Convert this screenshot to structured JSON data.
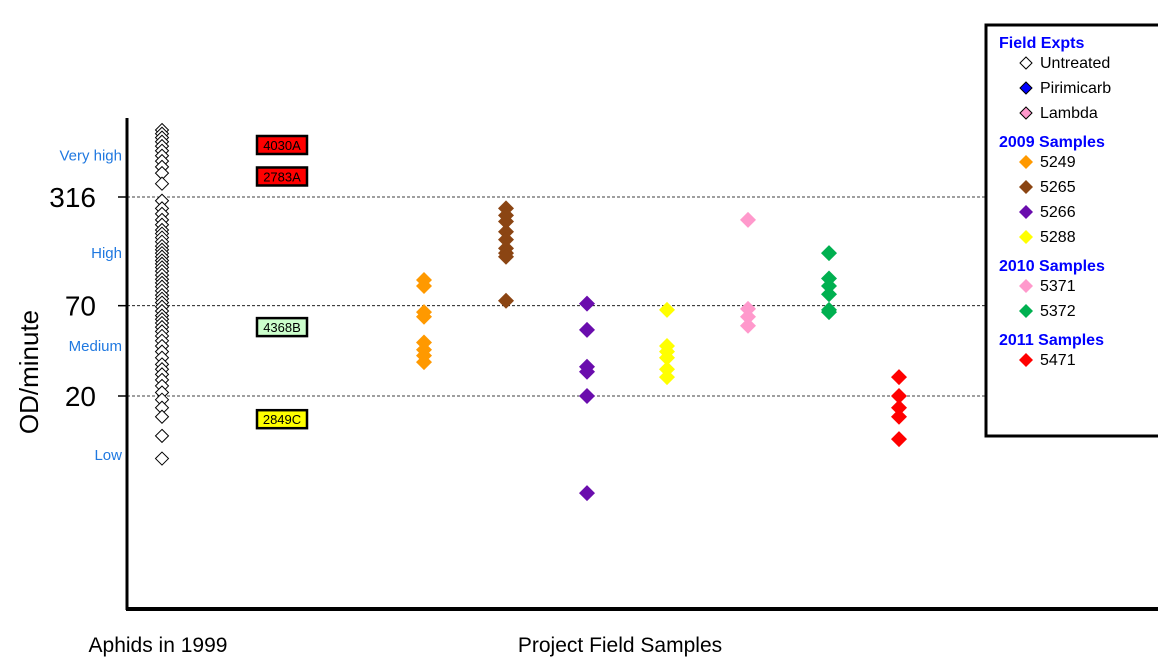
{
  "chart_data": {
    "type": "scatter",
    "title": "",
    "ylabel": "OD/minute",
    "y_scale": "log",
    "y_ticks": [
      {
        "value": 20,
        "label": "20"
      },
      {
        "value": 70,
        "label": "70"
      },
      {
        "value": 316,
        "label": "316"
      }
    ],
    "gridlines": [
      20,
      70,
      316
    ],
    "level_labels": [
      {
        "label": "Very high",
        "value": 560
      },
      {
        "label": "High",
        "value": 145
      },
      {
        "label": "Medium",
        "value": 40
      },
      {
        "label": "Low",
        "value": 8.8
      }
    ],
    "group_labels": {
      "left": "Aphids in 1999",
      "right": "Project Field Samples"
    },
    "reference_clones": [
      {
        "label": "4030A",
        "value": 650,
        "color": "#ff0000"
      },
      {
        "label": "2783A",
        "value": 420,
        "color": "#ff0000"
      },
      {
        "label": "4368B",
        "value": 52,
        "color": "#ccffcc"
      },
      {
        "label": "2849C",
        "value": 14.5,
        "color": "#ffff00"
      }
    ],
    "series": [
      {
        "name": "Untreated",
        "group": "Field Expts",
        "column": 0,
        "color": "#ffffff",
        "stroke": "#000000",
        "values": [
          800,
          760,
          720,
          680,
          640,
          600,
          560,
          520,
          480,
          440,
          380,
          300,
          270,
          250,
          230,
          215,
          200,
          190,
          180,
          170,
          160,
          152,
          145,
          138,
          131,
          125,
          119,
          113,
          107,
          101,
          96,
          91,
          86,
          81,
          77,
          73,
          69,
          65,
          61,
          58,
          55,
          52,
          49,
          46,
          43,
          40,
          37,
          34,
          31,
          29,
          27,
          25,
          23,
          21,
          19,
          17,
          15,
          11.5,
          8.4
        ]
      },
      {
        "name": "Pirimicarb",
        "group": "Field Expts",
        "column": null,
        "color": "#0000ff",
        "values": []
      },
      {
        "name": "Lambda",
        "group": "Field Expts",
        "column": null,
        "color": "#ff99cc",
        "values": []
      },
      {
        "name": "5249",
        "group": "2009 Samples",
        "column": 1,
        "color": "#ff9900",
        "values": [
          100,
          92,
          64,
          60,
          42,
          38,
          35,
          32
        ]
      },
      {
        "name": "5265",
        "group": "2009 Samples",
        "column": 2,
        "color": "#8b4513",
        "values": [
          270,
          245,
          225,
          195,
          175,
          155,
          145,
          138,
          75
        ]
      },
      {
        "name": "5266",
        "group": "2009 Samples",
        "column": 3,
        "color": "#6a0dad",
        "values": [
          72,
          50,
          30,
          28,
          20,
          5.2
        ]
      },
      {
        "name": "5288",
        "group": "2009 Samples",
        "column": 4,
        "color": "#ffff00",
        "values": [
          66,
          40,
          37,
          34,
          29,
          26
        ]
      },
      {
        "name": "5371",
        "group": "2010 Samples",
        "column": 5,
        "color": "#ff99cc",
        "values": [
          230,
          67,
          60,
          53
        ]
      },
      {
        "name": "5372",
        "group": "2010 Samples",
        "column": 6,
        "color": "#00b050",
        "values": [
          145,
          102,
          92,
          82,
          66,
          64
        ]
      },
      {
        "name": "5471",
        "group": "2011 Samples",
        "column": 7,
        "color": "#ff0000",
        "values": [
          26,
          20,
          17,
          15,
          11
        ]
      }
    ],
    "legend": {
      "placement": "top-right",
      "sections": [
        {
          "title": "Field Expts",
          "entries": [
            {
              "label": "Untreated",
              "color": "#ffffff",
              "stroke": "#000000"
            },
            {
              "label": "Pirimicarb",
              "color": "#0000ff",
              "stroke": "#000000"
            },
            {
              "label": "Lambda",
              "color": "#ff99cc",
              "stroke": "#000000"
            }
          ]
        },
        {
          "title": "2009 Samples",
          "entries": [
            {
              "label": "5249",
              "color": "#ff9900"
            },
            {
              "label": "5265",
              "color": "#8b4513"
            },
            {
              "label": "5266",
              "color": "#6a0dad"
            },
            {
              "label": "5288",
              "color": "#ffff00"
            }
          ]
        },
        {
          "title": "2010 Samples",
          "entries": [
            {
              "label": "5371",
              "color": "#ff99cc"
            },
            {
              "label": "5372",
              "color": "#00b050"
            }
          ]
        },
        {
          "title": "2011 Samples",
          "entries": [
            {
              "label": "5471",
              "color": "#ff0000"
            }
          ]
        }
      ]
    },
    "colors": {
      "axis": "#000000",
      "level_text": "#1f78e0",
      "legend_title": "#0000ff",
      "grid": "#000000"
    }
  }
}
